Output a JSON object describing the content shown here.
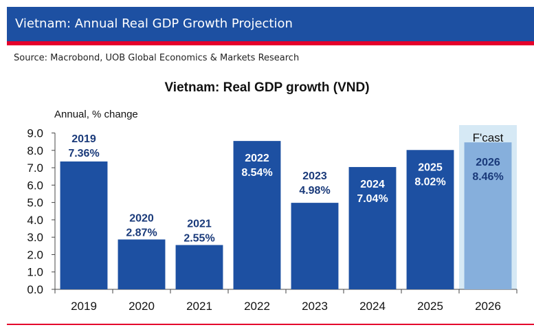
{
  "header": {
    "title": "Vietnam: Annual Real GDP Growth Projection",
    "source": "Source: Macrobond, UOB Global Economics & Markets Research"
  },
  "colors": {
    "header": "#1d50a2",
    "accent": "#e4002b",
    "bar": "#1d50a2",
    "forecast_bar": "#86afdc",
    "forecast_band": "#d6e9f5",
    "label_on_bar": "#ffffff",
    "label_above_bar": "#1a3a7a"
  },
  "chart_data": {
    "type": "bar",
    "title": "Vietnam: Real GDP growth (VND)",
    "ylabel": "Annual, % change",
    "xlabel": "",
    "ylim": [
      0,
      9
    ],
    "yticks": [
      "0.0",
      "1.0",
      "2.0",
      "3.0",
      "4.0",
      "5.0",
      "6.0",
      "7.0",
      "8.0",
      "9.0"
    ],
    "categories": [
      "2019",
      "2020",
      "2021",
      "2022",
      "2023",
      "2024",
      "2025",
      "2026"
    ],
    "values": [
      7.36,
      2.87,
      2.55,
      8.54,
      4.98,
      7.04,
      8.02,
      8.46
    ],
    "data_labels": [
      {
        "year": "2019",
        "value": "7.36%"
      },
      {
        "year": "2020",
        "value": "2.87%"
      },
      {
        "year": "2021",
        "value": "2.55%"
      },
      {
        "year": "2022",
        "value": "8.54%"
      },
      {
        "year": "2023",
        "value": "4.98%"
      },
      {
        "year": "2024",
        "value": "7.04%"
      },
      {
        "year": "2025",
        "value": "8.02%"
      },
      {
        "year": "2026",
        "value": "8.46%"
      }
    ],
    "forecast_categories": [
      "2026"
    ],
    "forecast_label": "F'cast",
    "grid": false,
    "legend": "none"
  }
}
